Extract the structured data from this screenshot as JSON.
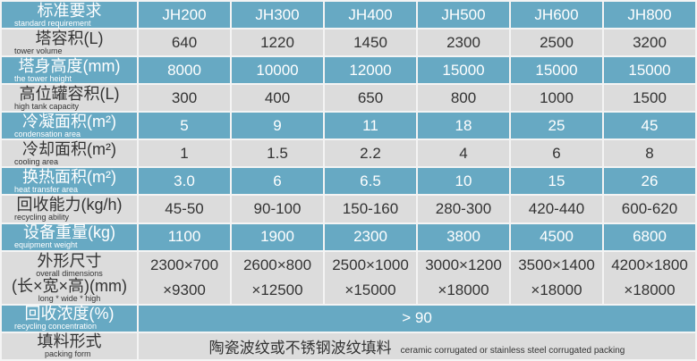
{
  "header": {
    "label_zh": "标准要求",
    "label_en": "standard requirement",
    "models": [
      "JH200",
      "JH300",
      "JH400",
      "JH500",
      "JH600",
      "JH800"
    ]
  },
  "rows": [
    {
      "zh": "塔容积(L)",
      "en": "tower volume",
      "values": [
        "640",
        "1220",
        "1450",
        "2300",
        "2500",
        "3200"
      ]
    },
    {
      "zh": "塔身高度(mm)",
      "en": "the tower height",
      "values": [
        "8000",
        "10000",
        "12000",
        "15000",
        "15000",
        "15000"
      ]
    },
    {
      "zh": "高位罐容积(L)",
      "en": "high tank capacity",
      "values": [
        "300",
        "400",
        "650",
        "800",
        "1000",
        "1500"
      ]
    },
    {
      "zh": "冷凝面积(m²)",
      "en": "condensation area",
      "values": [
        "5",
        "9",
        "11",
        "18",
        "25",
        "45"
      ]
    },
    {
      "zh": "冷却面积(m²)",
      "en": "cooling area",
      "values": [
        "1",
        "1.5",
        "2.2",
        "4",
        "6",
        "8"
      ]
    },
    {
      "zh": "换热面积(m²)",
      "en": "heat transfer area",
      "values": [
        "3.0",
        "6",
        "6.5",
        "10",
        "15",
        "26"
      ]
    },
    {
      "zh": "回收能力(kg/h)",
      "en": "recycling ability",
      "values": [
        "45-50",
        "90-100",
        "150-160",
        "280-300",
        "420-440",
        "600-620"
      ]
    },
    {
      "zh": "设备重量(kg)",
      "en": "equipment weight",
      "values": [
        "1100",
        "1900",
        "2300",
        "3800",
        "4500",
        "6800"
      ]
    }
  ],
  "dimensions": {
    "zh1": "外形尺寸",
    "en1": "overall dimensions",
    "zh2": "(长×宽×高)(mm)",
    "en2": "long * wide * high",
    "line1": [
      "2300×700",
      "2600×800",
      "2500×1000",
      "3000×1200",
      "3500×1400",
      "4200×1800"
    ],
    "line2": [
      "×9300",
      "×12500",
      "×15000",
      "×18000",
      "×18000",
      "×18000"
    ]
  },
  "concentration": {
    "zh": "回收浓度(%)",
    "en": "recycling concentration",
    "value": "> 90"
  },
  "packing": {
    "zh": "填料形式",
    "en": "packing form",
    "value_zh": "陶瓷波纹或不锈钢波纹填料",
    "value_en": "ceramic corrugated or stainless steel corrugated packing"
  },
  "colors": {
    "blue_row": "#67a9c3",
    "gray_row": "#dcdcdc"
  }
}
